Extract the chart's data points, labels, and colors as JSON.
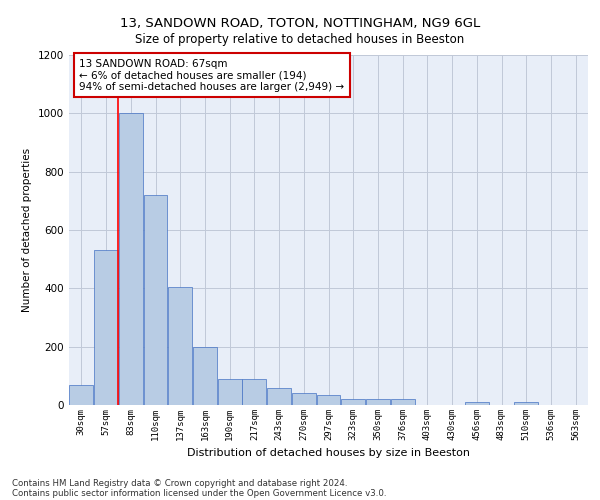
{
  "title1": "13, SANDOWN ROAD, TOTON, NOTTINGHAM, NG9 6GL",
  "title2": "Size of property relative to detached houses in Beeston",
  "xlabel": "Distribution of detached houses by size in Beeston",
  "ylabel": "Number of detached properties",
  "categories": [
    "30sqm",
    "57sqm",
    "83sqm",
    "110sqm",
    "137sqm",
    "163sqm",
    "190sqm",
    "217sqm",
    "243sqm",
    "270sqm",
    "297sqm",
    "323sqm",
    "350sqm",
    "376sqm",
    "403sqm",
    "430sqm",
    "456sqm",
    "483sqm",
    "510sqm",
    "536sqm",
    "563sqm"
  ],
  "values": [
    70,
    530,
    1000,
    720,
    405,
    200,
    90,
    90,
    57,
    40,
    35,
    20,
    20,
    20,
    0,
    0,
    10,
    0,
    10,
    0,
    0
  ],
  "bar_color": "#b8cce4",
  "bar_edge_color": "#4472c4",
  "grid_color": "#c0c8d8",
  "red_line_x": 1.5,
  "annotation_text": "13 SANDOWN ROAD: 67sqm\n← 6% of detached houses are smaller (194)\n94% of semi-detached houses are larger (2,949) →",
  "annotation_box_color": "#ffffff",
  "annotation_box_edge": "#cc0000",
  "ylim": [
    0,
    1200
  ],
  "yticks": [
    0,
    200,
    400,
    600,
    800,
    1000,
    1200
  ],
  "footnote1": "Contains HM Land Registry data © Crown copyright and database right 2024.",
  "footnote2": "Contains public sector information licensed under the Open Government Licence v3.0.",
  "bg_color": "#ffffff",
  "plot_bg_color": "#e8eef8"
}
